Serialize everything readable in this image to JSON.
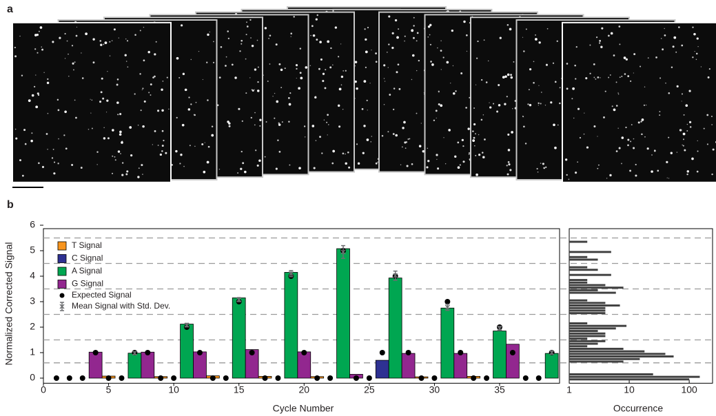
{
  "panel_labels": [
    "a",
    "b"
  ],
  "chart_data": [
    {
      "type": "bar",
      "xlabel": "Cycle Number",
      "ylabel": "Normalized Corrected Signal",
      "xlim": [
        0,
        39.6
      ],
      "ylim": [
        -0.2,
        6
      ],
      "xticks": [
        0,
        5,
        10,
        15,
        20,
        25,
        30,
        35
      ],
      "yticks": [
        0,
        1,
        2,
        3,
        4,
        5,
        6
      ],
      "thresholds": [
        0.6,
        1.5,
        2.5,
        3.5,
        4.5,
        5.5
      ],
      "legend": "upper left",
      "series": [
        {
          "name": "T Signal",
          "color": "#f7941d",
          "x": [
            5,
            9,
            13,
            17,
            21,
            29,
            33
          ],
          "values": [
            0.08,
            0.06,
            0.09,
            0.07,
            0.06,
            0.05,
            0.07
          ]
        },
        {
          "name": "C Signal",
          "color": "#2e3192",
          "x": [
            26
          ],
          "values": [
            0.7
          ]
        },
        {
          "name": "A Signal",
          "color": "#00a651",
          "x": [
            7,
            11,
            15,
            19,
            23,
            27,
            31,
            35,
            39
          ],
          "values": [
            0.98,
            2.12,
            3.15,
            4.15,
            5.08,
            3.93,
            2.75,
            1.85,
            0.97
          ]
        },
        {
          "name": "G Signal",
          "color": "#92278f",
          "x": [
            4,
            8,
            12,
            16,
            20,
            24,
            28,
            32,
            36
          ],
          "values": [
            1.02,
            1.02,
            1.03,
            1.12,
            1.03,
            0.15,
            0.97,
            0.97,
            1.33
          ]
        }
      ],
      "expected": {
        "name": "Expected Signal",
        "color": "#000000",
        "x": [
          1,
          2,
          3,
          4,
          5,
          6,
          7,
          8,
          9,
          10,
          11,
          12,
          13,
          14,
          15,
          16,
          17,
          18,
          19,
          20,
          21,
          22,
          23,
          24,
          25,
          26,
          27,
          28,
          29,
          30,
          31,
          32,
          33,
          34,
          35,
          36,
          37,
          38,
          39
        ],
        "values": [
          0,
          0,
          0,
          1,
          0,
          0,
          1,
          1,
          0,
          0,
          2,
          1,
          0,
          0,
          3,
          1,
          0,
          0,
          4,
          1,
          0,
          0,
          5,
          0,
          0,
          1,
          4,
          1,
          0,
          0,
          3,
          1,
          0,
          0,
          2,
          1,
          0,
          0,
          1
        ]
      },
      "mean": {
        "name": "Mean Signal with Std. Dev.",
        "color": "#6d6e71",
        "x": [
          7,
          11,
          15,
          19,
          23,
          27,
          31,
          35,
          39
        ],
        "values": [
          0.98,
          2.08,
          3.08,
          4.1,
          4.95,
          4.02,
          2.78,
          1.95,
          1.0
        ],
        "errors": [
          0.06,
          0.07,
          0.08,
          0.12,
          0.25,
          0.18,
          0.12,
          0.08,
          0.07
        ]
      }
    },
    {
      "type": "histogram",
      "orientation": "horizontal",
      "xlabel": "Occurrence",
      "xscale": "log",
      "xlim": [
        1,
        245
      ],
      "xticks": [
        1,
        10,
        100
      ],
      "ylim": [
        -0.2,
        6
      ],
      "color": "#404040",
      "bins": [
        -0.1,
        0,
        0.1,
        0.2,
        0.3,
        0.4,
        0.5,
        0.6,
        0.7,
        0.8,
        0.9,
        1,
        1.1,
        1.2,
        1.3,
        1.4,
        1.5,
        1.6,
        1.7,
        1.8,
        1.9,
        2,
        2.1,
        2.2,
        2.3,
        2.4,
        2.5,
        2.6,
        2.7,
        2.8,
        2.9,
        3,
        3.1,
        3.2,
        3.3,
        3.4,
        3.5,
        3.6,
        3.7,
        3.8,
        3.9,
        4,
        4.1,
        4.2,
        4.3,
        4.4,
        4.5,
        4.6,
        4.7,
        4.8,
        4.9,
        5,
        5.1,
        5.2,
        5.3,
        5.4,
        5.5
      ],
      "counts": [
        100,
        150,
        25,
        0,
        0,
        0,
        0,
        8,
        15,
        55,
        40,
        18,
        8,
        2,
        3,
        4,
        2,
        4,
        4,
        3,
        6,
        9,
        2,
        0,
        0,
        0,
        4,
        4,
        4,
        7,
        4,
        2,
        0,
        0,
        6,
        3,
        8,
        4,
        2,
        2,
        0,
        5,
        0,
        3,
        2,
        0,
        0,
        3,
        2,
        0,
        5,
        0,
        0,
        0,
        2,
        0
      ]
    }
  ]
}
